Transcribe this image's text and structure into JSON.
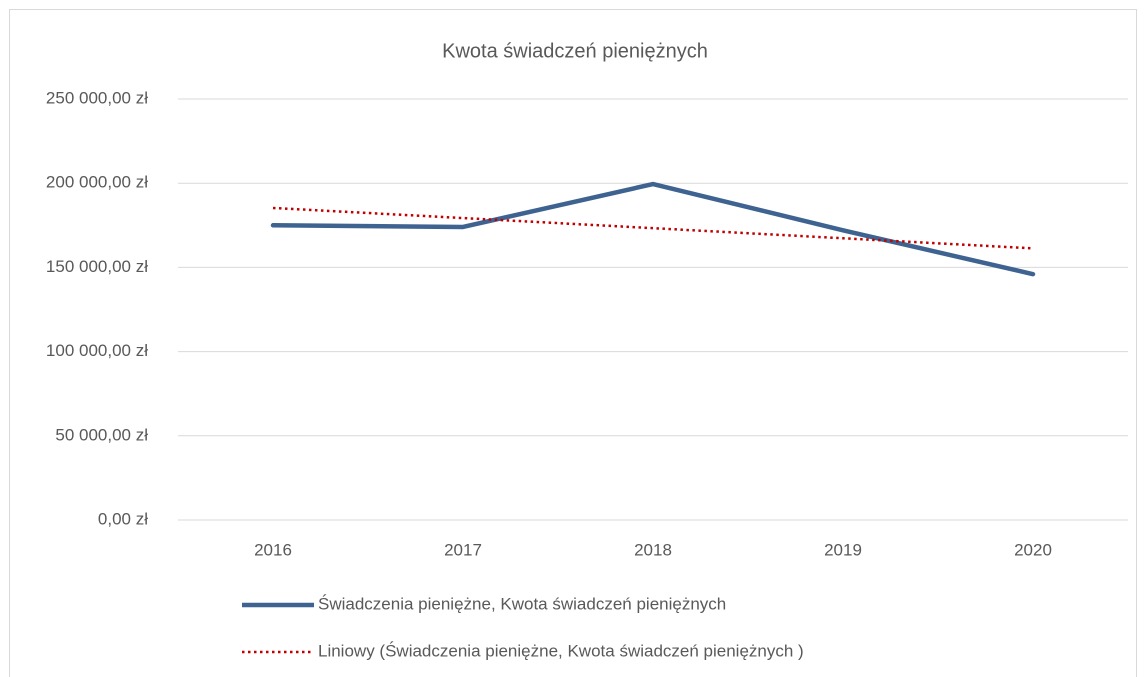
{
  "chart_data": {
    "type": "line",
    "title": "Kwota świadczeń pieniężnych",
    "categories": [
      "2016",
      "2017",
      "2018",
      "2019",
      "2020"
    ],
    "series": [
      {
        "name": "Świadczenia pieniężne, Kwota świadczeń pieniężnych",
        "color": "#3e6391",
        "style": "solid",
        "values": [
          175000,
          174000,
          199500,
          172000,
          146000
        ]
      },
      {
        "name": "Liniowy (Świadczenia pieniężne, Kwota świadczeń pieniężnych )",
        "color": "#c00000",
        "style": "dotted",
        "values": [
          185300,
          179300,
          173300,
          167300,
          161300
        ]
      }
    ],
    "ylim": [
      0,
      250000
    ],
    "yticks": [
      {
        "value": 0,
        "label": "0,00 zł"
      },
      {
        "value": 50000,
        "label": "50 000,00 zł"
      },
      {
        "value": 100000,
        "label": "100 000,00 zł"
      },
      {
        "value": 150000,
        "label": "150 000,00 zł"
      },
      {
        "value": 200000,
        "label": "200 000,00 zł"
      },
      {
        "value": 250000,
        "label": "250 000,00 zł"
      }
    ],
    "grid": true
  }
}
